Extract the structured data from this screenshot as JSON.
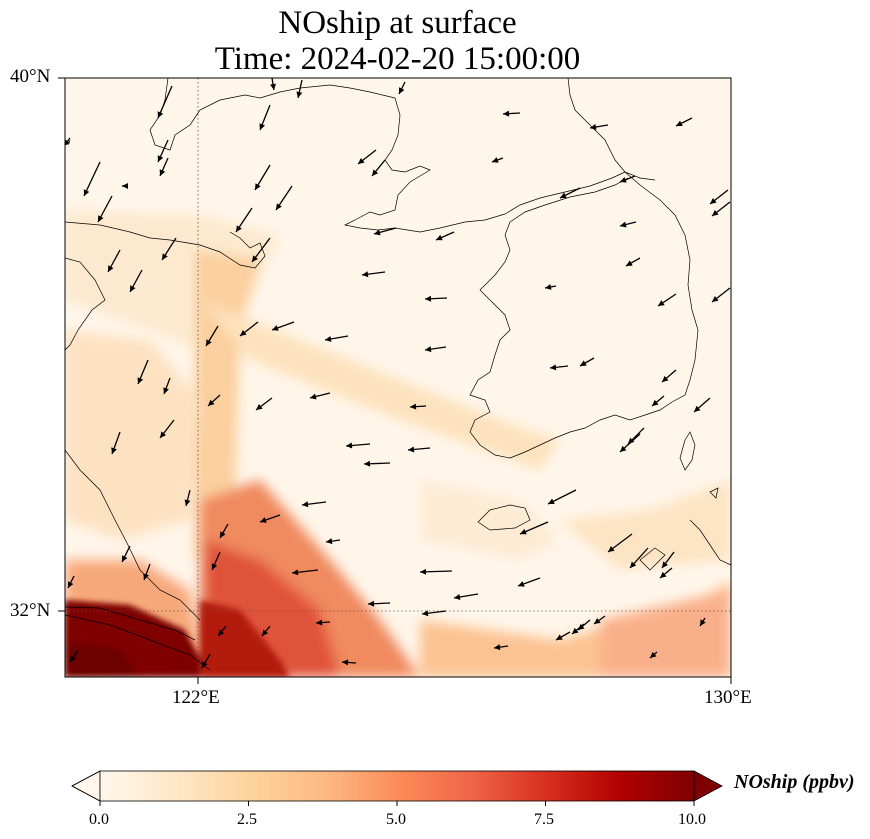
{
  "title": "NOship at surface",
  "subtitle": "Time: 2024-02-20 15:00:00",
  "axes": {
    "lat_ticks": [
      "40°N",
      "32°N"
    ],
    "lon_ticks": [
      "122°E",
      "130°E"
    ],
    "lon_range": [
      120,
      130
    ],
    "lat_range": [
      31,
      40
    ]
  },
  "colorbar": {
    "label": "NOship (ppbv)",
    "ticks": [
      "0.0",
      "2.5",
      "5.0",
      "7.5",
      "10.0"
    ],
    "min": 0,
    "max": 10,
    "colormap": "OrRd",
    "extend": "both",
    "colors": [
      "#fff7ec",
      "#fee8c8",
      "#fdd49e",
      "#fdbb84",
      "#fc8d59",
      "#ef6548",
      "#d7301f",
      "#b30000",
      "#7f0000"
    ]
  },
  "chart_data": {
    "type": "heatmap",
    "variable": "NOship",
    "units": "ppbv",
    "description_values": {
      "high_southwest_corner": 10.0,
      "shipping_lane_122_5E": 3.0,
      "diagonal_to_jeju": 2.0,
      "open_sea_background": 0.5
    },
    "gridlines": {
      "lon": 122,
      "lat": 32,
      "style": "dotted"
    },
    "wind_vectors": true
  }
}
